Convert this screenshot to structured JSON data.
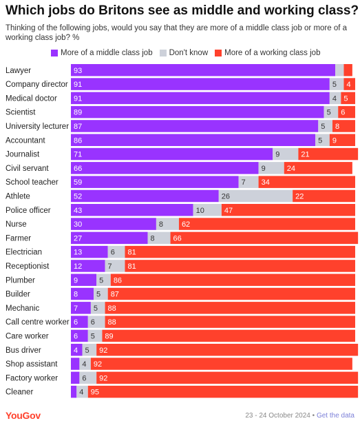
{
  "title": "Which jobs do Britons see as middle and working class?",
  "subtitle": "Thinking of the following jobs, would you say that they are more of a middle class job or more of a working class job? %",
  "footer": {
    "logo": "YouGov",
    "date": "23 - 24 October 2024",
    "separator": "•",
    "link": "Get the data"
  },
  "colors": {
    "middle": "#9933ff",
    "dont_know": "#cdd1da",
    "working": "#ff412c"
  },
  "chart_data": {
    "type": "bar",
    "orientation": "horizontal",
    "stacked": true,
    "categories": [
      "Lawyer",
      "Company director",
      "Medical doctor",
      "Scientist",
      "University lecturer",
      "Accountant",
      "Journalist",
      "Civil servant",
      "School teacher",
      "Athlete",
      "Police officer",
      "Nurse",
      "Farmer",
      "Electrician",
      "Receptionist",
      "Plumber",
      "Builder",
      "Mechanic",
      "Call centre worker",
      "Care worker",
      "Bus driver",
      "Shop assistant",
      "Factory worker",
      "Cleaner"
    ],
    "series": [
      {
        "name": "More of a middle class job",
        "color": "#9933ff",
        "values": [
          93,
          91,
          91,
          89,
          87,
          86,
          71,
          66,
          59,
          52,
          43,
          30,
          27,
          13,
          12,
          9,
          8,
          7,
          6,
          6,
          4,
          3,
          3,
          2
        ]
      },
      {
        "name": "Don't know",
        "color": "#cdd1da",
        "values": [
          3,
          5,
          4,
          5,
          5,
          5,
          9,
          9,
          7,
          26,
          10,
          8,
          8,
          6,
          7,
          5,
          5,
          5,
          6,
          5,
          5,
          4,
          6,
          4
        ]
      },
      {
        "name": "More of a working class job",
        "color": "#ff412c",
        "values": [
          3,
          4,
          5,
          6,
          8,
          9,
          21,
          24,
          34,
          22,
          47,
          62,
          66,
          81,
          81,
          86,
          87,
          88,
          88,
          89,
          92,
          92,
          92,
          95
        ]
      }
    ],
    "labels": [
      [
        "93",
        "",
        ""
      ],
      [
        "91",
        "5",
        "4"
      ],
      [
        "91",
        "4",
        "5"
      ],
      [
        "89",
        "5",
        "6"
      ],
      [
        "87",
        "5",
        "8"
      ],
      [
        "86",
        "5",
        "9"
      ],
      [
        "71",
        "9",
        "21"
      ],
      [
        "66",
        "9",
        "24"
      ],
      [
        "59",
        "7",
        "34"
      ],
      [
        "52",
        "26",
        "22"
      ],
      [
        "43",
        "10",
        "47"
      ],
      [
        "30",
        "8",
        "62"
      ],
      [
        "27",
        "8",
        "66"
      ],
      [
        "13",
        "6",
        "81"
      ],
      [
        "12",
        "7",
        "81"
      ],
      [
        "9",
        "5",
        "86"
      ],
      [
        "8",
        "5",
        "87"
      ],
      [
        "7",
        "5",
        "88"
      ],
      [
        "6",
        "6",
        "88"
      ],
      [
        "6",
        "5",
        "89"
      ],
      [
        "4",
        "5",
        "92"
      ],
      [
        "",
        "4",
        "92"
      ],
      [
        "",
        "6",
        "92"
      ],
      [
        "",
        "4",
        "95"
      ]
    ],
    "xlim": [
      0,
      100
    ],
    "legend_position": "top",
    "grid": false
  }
}
